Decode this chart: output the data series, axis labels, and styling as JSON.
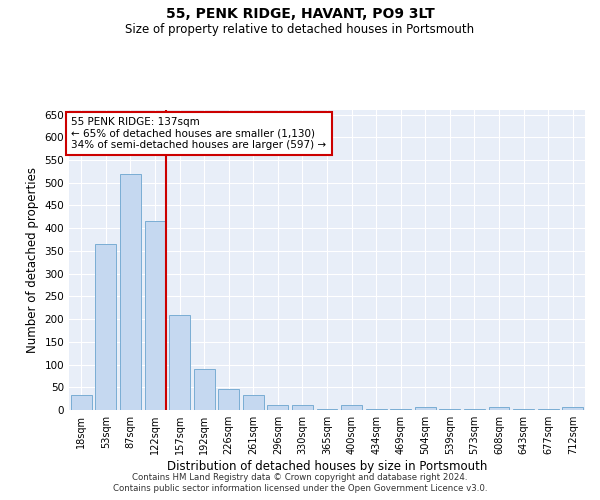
{
  "title1": "55, PENK RIDGE, HAVANT, PO9 3LT",
  "title2": "Size of property relative to detached houses in Portsmouth",
  "xlabel": "Distribution of detached houses by size in Portsmouth",
  "ylabel": "Number of detached properties",
  "categories": [
    "18sqm",
    "53sqm",
    "87sqm",
    "122sqm",
    "157sqm",
    "192sqm",
    "226sqm",
    "261sqm",
    "296sqm",
    "330sqm",
    "365sqm",
    "400sqm",
    "434sqm",
    "469sqm",
    "504sqm",
    "539sqm",
    "573sqm",
    "608sqm",
    "643sqm",
    "677sqm",
    "712sqm"
  ],
  "values": [
    32,
    365,
    520,
    415,
    210,
    90,
    47,
    32,
    12,
    12,
    3,
    12,
    3,
    3,
    6,
    3,
    3,
    6,
    3,
    3,
    6
  ],
  "bar_color": "#c5d8f0",
  "bar_edge_color": "#7aadd4",
  "property_size": "137sqm",
  "annotation_line1": "55 PENK RIDGE: 137sqm",
  "annotation_line2": "← 65% of detached houses are smaller (1,130)",
  "annotation_line3": "34% of semi-detached houses are larger (597) →",
  "red_line_color": "#cc0000",
  "annotation_box_color": "#ffffff",
  "annotation_box_edge": "#cc0000",
  "ylim": [
    0,
    660
  ],
  "yticks": [
    0,
    50,
    100,
    150,
    200,
    250,
    300,
    350,
    400,
    450,
    500,
    550,
    600,
    650
  ],
  "bg_color": "#e8eef8",
  "footer1": "Contains HM Land Registry data © Crown copyright and database right 2024.",
  "footer2": "Contains public sector information licensed under the Open Government Licence v3.0."
}
